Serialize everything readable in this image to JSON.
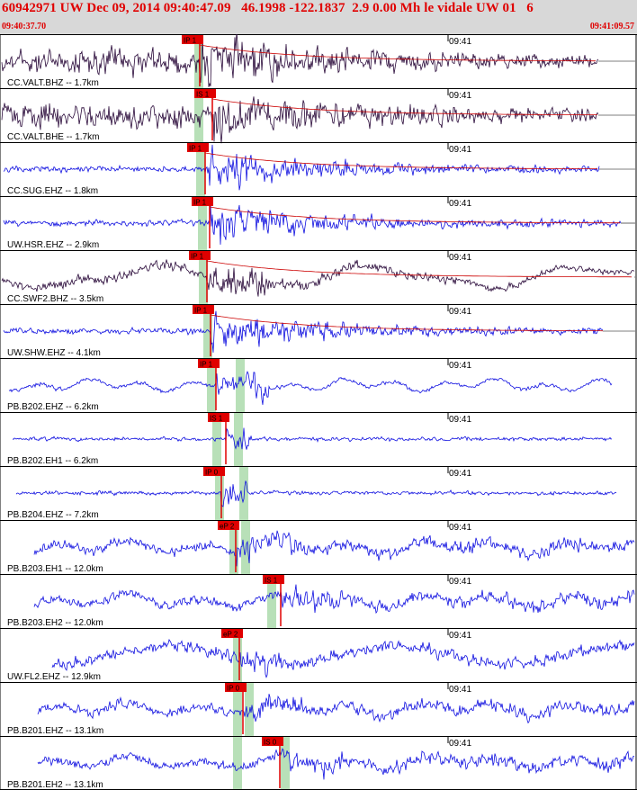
{
  "header": {
    "title": "60942971 UW Dec 09, 2014 09:40:47.09   46.1998 -122.1837  2.9 0.00 Mh le vidale UW 01   6",
    "time_start": "09:40:37.70",
    "time_end": "09:41:09.57"
  },
  "colors": {
    "header_bg": "#d8d8d8",
    "header_text": "#e00000",
    "trace_dark": "#2a0a3a",
    "trace_blue": "#1010e0",
    "pick_bg": "#e00000",
    "envelope": "#cc0000",
    "pick_band": "#b8e0b8"
  },
  "chart_data": {
    "type": "line",
    "time_range": [
      "09:40:37.70",
      "09:41:09.57"
    ],
    "minute_label": "09:41",
    "traces": [
      {
        "label": "CC.VALT.BHZ -- 1.7km",
        "pick": "IP 1",
        "color": "dark"
      },
      {
        "label": "CC.VALT.BHE -- 1.7km",
        "pick": "IS 1",
        "color": "dark"
      },
      {
        "label": "CC.SUG.EHZ -- 1.8km",
        "pick": "IP 1",
        "color": "blue"
      },
      {
        "label": "UW.HSR.EHZ -- 2.9km",
        "pick": "IP 1",
        "color": "blue"
      },
      {
        "label": "CC.SWF2.BHZ -- 3.5km",
        "pick": "IP 1",
        "color": "dark"
      },
      {
        "label": "UW.SHW.EHZ -- 4.1km",
        "pick": "IP 1",
        "color": "blue"
      },
      {
        "label": "PB.B202.EHZ -- 6.2km",
        "pick": "IP 1",
        "color": "blue"
      },
      {
        "label": "PB.B202.EH1 -- 6.2km",
        "pick": "IS 1",
        "color": "blue"
      },
      {
        "label": "PB.B204.EHZ -- 7.2km",
        "pick": "IP 0",
        "color": "blue"
      },
      {
        "label": "PB.B203.EH1 -- 12.0km",
        "pick": "eP 2",
        "color": "blue"
      },
      {
        "label": "PB.B203.EH2 -- 12.0km",
        "pick": "IS 1",
        "color": "blue"
      },
      {
        "label": "UW.FL2.EHZ -- 12.9km",
        "pick": "eP 2",
        "color": "blue"
      },
      {
        "label": "PB.B201.EHZ -- 13.1km",
        "pick": "IP 0",
        "color": "blue"
      },
      {
        "label": "PB.B201.EH2 -- 13.1km",
        "pick": "IS 0",
        "color": "blue"
      }
    ]
  }
}
